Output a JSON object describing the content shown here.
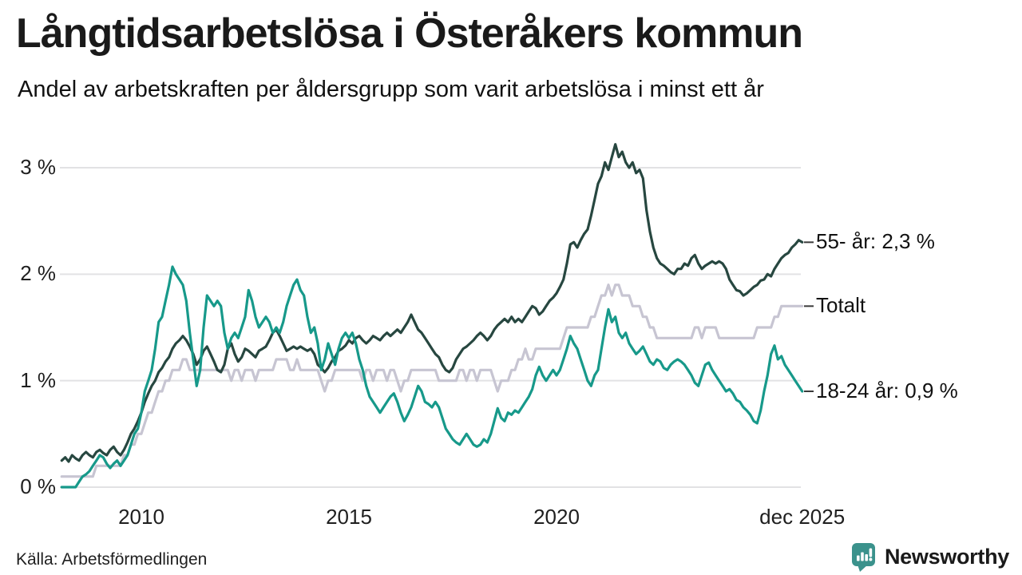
{
  "header": {
    "title": "Långtidsarbetslösa i Österåkers kommun",
    "subtitle": "Andel av arbetskraften per åldersgrupp som varit arbetslösa i minst ett år"
  },
  "footer": {
    "source": "Källa: Arbetsförmedlingen",
    "brand_name": "Newsworthy",
    "brand_color": "#3b928c",
    "brand_icon": "newsworthy-speech-bubble-bar-chart-icon"
  },
  "colors": {
    "grid": "#e2e2e4",
    "text": "#1a1a1a",
    "connector": "#3a3a3a"
  },
  "chart_data": {
    "type": "line",
    "title": "Långtidsarbetslösa i Österåkers kommun",
    "subtitle": "Andel av arbetskraften per åldersgrupp som varit arbetslösa i minst ett år",
    "unit": "%",
    "x_start": 2008.0833,
    "x_end": 2025.9167,
    "x_step": "monthly",
    "ylim": [
      0,
      3.3
    ],
    "grid": "horizontal",
    "legend_position": "right-end-labels",
    "x_ticks": [
      {
        "t": 2010,
        "label": "2010"
      },
      {
        "t": 2015,
        "label": "2015"
      },
      {
        "t": 2020,
        "label": "2020"
      },
      {
        "t": 2025.917,
        "label": "dec 2025"
      }
    ],
    "y_ticks": [
      {
        "v": 0,
        "label": "0 %"
      },
      {
        "v": 1,
        "label": "1 %"
      },
      {
        "v": 2,
        "label": "2 %"
      },
      {
        "v": 3,
        "label": "3 %"
      }
    ],
    "series": [
      {
        "name": "55- år",
        "end_label": "55- år: 2,3 %",
        "end_value": 2.3,
        "color": "#274740",
        "z": 2,
        "values": [
          0.25,
          0.28,
          0.24,
          0.3,
          0.27,
          0.25,
          0.3,
          0.33,
          0.3,
          0.28,
          0.33,
          0.35,
          0.32,
          0.3,
          0.35,
          0.38,
          0.33,
          0.3,
          0.35,
          0.42,
          0.5,
          0.55,
          0.62,
          0.7,
          0.8,
          0.88,
          0.95,
          1.0,
          1.08,
          1.12,
          1.18,
          1.22,
          1.3,
          1.35,
          1.38,
          1.42,
          1.38,
          1.32,
          1.25,
          1.15,
          1.2,
          1.28,
          1.32,
          1.25,
          1.18,
          1.1,
          1.08,
          1.15,
          1.3,
          1.35,
          1.25,
          1.18,
          1.22,
          1.3,
          1.28,
          1.25,
          1.22,
          1.28,
          1.3,
          1.32,
          1.38,
          1.45,
          1.48,
          1.42,
          1.35,
          1.28,
          1.3,
          1.32,
          1.3,
          1.32,
          1.3,
          1.28,
          1.3,
          1.25,
          1.15,
          1.12,
          1.08,
          1.12,
          1.18,
          1.22,
          1.28,
          1.3,
          1.33,
          1.38,
          1.35,
          1.4,
          1.42,
          1.38,
          1.35,
          1.38,
          1.42,
          1.4,
          1.38,
          1.42,
          1.45,
          1.42,
          1.45,
          1.48,
          1.45,
          1.5,
          1.55,
          1.62,
          1.55,
          1.48,
          1.45,
          1.4,
          1.35,
          1.3,
          1.25,
          1.22,
          1.15,
          1.1,
          1.08,
          1.12,
          1.2,
          1.25,
          1.3,
          1.32,
          1.35,
          1.38,
          1.42,
          1.45,
          1.42,
          1.38,
          1.42,
          1.48,
          1.52,
          1.55,
          1.58,
          1.55,
          1.6,
          1.55,
          1.58,
          1.55,
          1.6,
          1.65,
          1.7,
          1.68,
          1.62,
          1.65,
          1.7,
          1.75,
          1.78,
          1.82,
          1.88,
          1.95,
          2.1,
          2.28,
          2.3,
          2.25,
          2.32,
          2.38,
          2.42,
          2.55,
          2.7,
          2.85,
          2.92,
          3.05,
          2.98,
          3.1,
          3.22,
          3.1,
          3.15,
          3.05,
          3.0,
          3.05,
          2.95,
          2.98,
          2.9,
          2.6,
          2.4,
          2.25,
          2.15,
          2.1,
          2.08,
          2.05,
          2.02,
          2.0,
          2.05,
          2.05,
          2.1,
          2.08,
          2.15,
          2.18,
          2.1,
          2.05,
          2.08,
          2.1,
          2.12,
          2.1,
          2.12,
          2.1,
          2.05,
          1.95,
          1.9,
          1.85,
          1.84,
          1.8,
          1.82,
          1.85,
          1.88,
          1.9,
          1.94,
          1.95,
          2.0,
          1.98,
          2.05,
          2.1,
          2.15,
          2.18,
          2.2,
          2.25,
          2.28,
          2.32,
          2.3
        ]
      },
      {
        "name": "Totalt",
        "end_label": "Totalt",
        "end_value": 1.7,
        "color": "#c7c5d2",
        "z": 1,
        "values": [
          0.1,
          0.1,
          0.1,
          0.1,
          0.1,
          0.1,
          0.1,
          0.1,
          0.1,
          0.1,
          0.2,
          0.2,
          0.2,
          0.2,
          0.2,
          0.2,
          0.2,
          0.2,
          0.3,
          0.3,
          0.4,
          0.4,
          0.5,
          0.5,
          0.6,
          0.7,
          0.7,
          0.8,
          0.9,
          0.9,
          1.0,
          1.0,
          1.1,
          1.1,
          1.1,
          1.2,
          1.2,
          1.1,
          1.1,
          1.1,
          1.1,
          1.1,
          1.1,
          1.1,
          1.1,
          1.1,
          1.1,
          1.1,
          1.1,
          1.0,
          1.1,
          1.1,
          1.0,
          1.1,
          1.1,
          1.1,
          1.0,
          1.1,
          1.1,
          1.1,
          1.1,
          1.1,
          1.2,
          1.2,
          1.2,
          1.2,
          1.1,
          1.1,
          1.2,
          1.1,
          1.1,
          1.1,
          1.1,
          1.1,
          1.1,
          1.0,
          0.9,
          1.0,
          1.0,
          1.1,
          1.1,
          1.1,
          1.1,
          1.1,
          1.1,
          1.1,
          1.1,
          1.0,
          1.1,
          1.1,
          1.0,
          1.1,
          1.1,
          1.1,
          1.0,
          1.1,
          1.1,
          1.0,
          0.9,
          1.0,
          1.0,
          1.1,
          1.1,
          1.1,
          1.1,
          1.1,
          1.1,
          1.1,
          1.1,
          1.0,
          1.0,
          1.0,
          1.0,
          1.0,
          1.0,
          1.1,
          1.1,
          1.0,
          1.1,
          1.1,
          1.0,
          1.1,
          1.1,
          1.1,
          1.1,
          1.0,
          0.9,
          1.0,
          1.0,
          1.0,
          1.1,
          1.1,
          1.2,
          1.2,
          1.3,
          1.2,
          1.2,
          1.3,
          1.3,
          1.3,
          1.3,
          1.3,
          1.3,
          1.3,
          1.3,
          1.4,
          1.5,
          1.5,
          1.5,
          1.5,
          1.5,
          1.5,
          1.5,
          1.6,
          1.6,
          1.7,
          1.8,
          1.8,
          1.9,
          1.8,
          1.9,
          1.9,
          1.8,
          1.8,
          1.8,
          1.7,
          1.7,
          1.7,
          1.6,
          1.6,
          1.5,
          1.5,
          1.4,
          1.4,
          1.4,
          1.4,
          1.4,
          1.4,
          1.4,
          1.4,
          1.4,
          1.4,
          1.4,
          1.5,
          1.5,
          1.4,
          1.5,
          1.5,
          1.5,
          1.5,
          1.4,
          1.4,
          1.4,
          1.4,
          1.4,
          1.4,
          1.4,
          1.4,
          1.4,
          1.4,
          1.4,
          1.5,
          1.5,
          1.5,
          1.5,
          1.5,
          1.6,
          1.6,
          1.7,
          1.7,
          1.7,
          1.7,
          1.7,
          1.7,
          1.7
        ]
      },
      {
        "name": "18-24 år",
        "end_label": "18-24 år: 0,9 %",
        "end_value": 0.9,
        "color": "#17998a",
        "z": 3,
        "values": [
          0.0,
          0.0,
          0.0,
          0.0,
          0.0,
          0.05,
          0.1,
          0.12,
          0.15,
          0.2,
          0.25,
          0.3,
          0.28,
          0.22,
          0.18,
          0.22,
          0.25,
          0.2,
          0.25,
          0.3,
          0.4,
          0.5,
          0.55,
          0.7,
          0.9,
          1.0,
          1.1,
          1.3,
          1.55,
          1.6,
          1.75,
          1.9,
          2.07,
          2.0,
          1.95,
          1.9,
          1.75,
          1.45,
          1.2,
          0.95,
          1.1,
          1.5,
          1.8,
          1.75,
          1.7,
          1.75,
          1.7,
          1.45,
          1.3,
          1.4,
          1.45,
          1.4,
          1.5,
          1.6,
          1.85,
          1.75,
          1.6,
          1.5,
          1.55,
          1.6,
          1.55,
          1.45,
          1.5,
          1.45,
          1.55,
          1.7,
          1.8,
          1.9,
          1.95,
          1.85,
          1.8,
          1.6,
          1.45,
          1.5,
          1.35,
          1.1,
          1.2,
          1.35,
          1.25,
          1.15,
          1.3,
          1.4,
          1.45,
          1.4,
          1.45,
          1.35,
          1.2,
          1.1,
          0.95,
          0.85,
          0.8,
          0.75,
          0.7,
          0.75,
          0.8,
          0.85,
          0.88,
          0.8,
          0.7,
          0.62,
          0.68,
          0.75,
          0.85,
          0.95,
          0.9,
          0.8,
          0.78,
          0.75,
          0.8,
          0.75,
          0.65,
          0.55,
          0.5,
          0.45,
          0.42,
          0.4,
          0.45,
          0.5,
          0.45,
          0.4,
          0.38,
          0.4,
          0.45,
          0.42,
          0.5,
          0.62,
          0.74,
          0.65,
          0.62,
          0.7,
          0.68,
          0.72,
          0.7,
          0.75,
          0.8,
          0.85,
          0.92,
          1.05,
          1.13,
          1.05,
          1.0,
          1.05,
          1.1,
          1.05,
          1.1,
          1.2,
          1.3,
          1.42,
          1.35,
          1.3,
          1.2,
          1.1,
          1.0,
          0.95,
          1.05,
          1.1,
          1.3,
          1.5,
          1.67,
          1.55,
          1.6,
          1.45,
          1.4,
          1.45,
          1.35,
          1.3,
          1.25,
          1.28,
          1.32,
          1.25,
          1.18,
          1.15,
          1.2,
          1.18,
          1.12,
          1.1,
          1.15,
          1.18,
          1.2,
          1.18,
          1.15,
          1.1,
          1.05,
          0.98,
          0.95,
          1.05,
          1.15,
          1.17,
          1.1,
          1.05,
          1.0,
          0.95,
          0.9,
          0.92,
          0.88,
          0.82,
          0.8,
          0.75,
          0.72,
          0.68,
          0.62,
          0.6,
          0.72,
          0.9,
          1.05,
          1.25,
          1.33,
          1.2,
          1.23,
          1.15,
          1.1,
          1.05,
          1.0,
          0.95,
          0.9
        ]
      }
    ]
  }
}
